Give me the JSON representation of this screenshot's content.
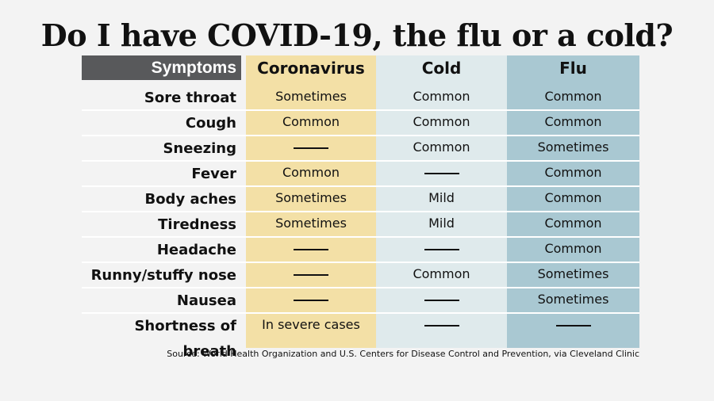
{
  "chart_data": {
    "type": "table",
    "title": "Do I have COVID-19, the flu or a cold?",
    "header_symptoms": "Symptoms",
    "columns": [
      "Coronavirus",
      "Cold",
      "Flu"
    ],
    "rows": [
      {
        "symptom": "Sore throat",
        "values": [
          "Sometimes",
          "Common",
          "Common"
        ]
      },
      {
        "symptom": "Cough",
        "values": [
          "Common",
          "Common",
          "Common"
        ]
      },
      {
        "symptom": "Sneezing",
        "values": [
          "—",
          "Common",
          "Sometimes"
        ]
      },
      {
        "symptom": "Fever",
        "values": [
          "Common",
          "—",
          "Common"
        ]
      },
      {
        "symptom": "Body aches",
        "values": [
          "Sometimes",
          "Mild",
          "Common"
        ]
      },
      {
        "symptom": "Tiredness",
        "values": [
          "Sometimes",
          "Mild",
          "Common"
        ]
      },
      {
        "symptom": "Headache",
        "values": [
          "—",
          "—",
          "Common"
        ]
      },
      {
        "symptom": "Runny/stuffy nose",
        "values": [
          "—",
          "Common",
          "Sometimes"
        ]
      },
      {
        "symptom": "Nausea",
        "values": [
          "—",
          "—",
          "Sometimes"
        ]
      },
      {
        "symptom": "Shortness of breath",
        "values": [
          "In severe cases",
          "—",
          "—"
        ]
      }
    ],
    "source": "Source: World Health Organization and U.S. Centers for Disease Control and Prevention, via Cleveland Clinic",
    "colors": {
      "coronavirus": "#f3e0a6",
      "cold": "#dfeaec",
      "flu": "#a9c8d2",
      "header_bg": "#58595b"
    }
  }
}
